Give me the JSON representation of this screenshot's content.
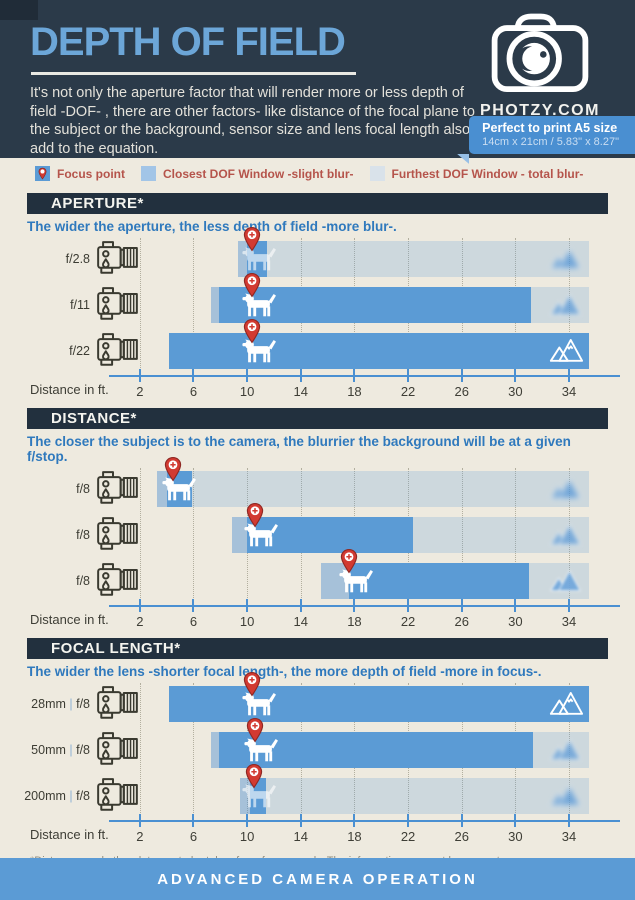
{
  "header": {
    "title": "DEPTH OF FIELD",
    "description": "It's not only the aperture factor that will render more or less depth of field -DOF- , there are other factors- like distance of the focal plane to the subject or the background, sensor size and lens focal length also add to the equation.",
    "brand": "PHOTZY.COM",
    "badge_line1": "Perfect to print A5 size",
    "badge_line2": "14cm x 21cm / 5.83\" x 8.27\""
  },
  "legend": {
    "items": [
      {
        "swatch": "focus-point",
        "label": "Focus point"
      },
      {
        "swatch": "closest-dof",
        "label": "Closest DOF  Window -slight blur-"
      },
      {
        "swatch": "furthest-dof",
        "label": "Furthest DOF Window - total blur-"
      }
    ]
  },
  "footnote": "*Distances and other data are to be taken for reference only. The information may not be accurate.",
  "footer": {
    "label": "ADVANCED CAMERA OPERATION"
  },
  "colors": {
    "header_bg": "#2b3a49",
    "page_bg": "#eeeadf",
    "accent_blue": "#5b9bd5",
    "badge_blue": "#4a8fd1",
    "section_bar": "#22303e",
    "subtitle_blue": "#2f79bd",
    "legend_text": "#b5544b",
    "pin_red": "#d23a31",
    "closest_window_blue": "#a2c5e7",
    "furthest_window_blue": "#d9e2ea"
  },
  "chart_data": {
    "type": "bar",
    "unit": "ft",
    "axis_title": "Distance in ft.",
    "x_ticks": [
      2,
      6,
      10,
      14,
      18,
      22,
      26,
      30,
      34
    ],
    "x_domain": [
      0,
      37.8
    ],
    "charts": [
      {
        "title": "APERTURE*",
        "subtitle": "The wider the aperture, the less depth of field -more blur-.",
        "rows": [
          {
            "label": "f/2.8",
            "closest_blur": [
              9.3,
              10.0
            ],
            "in_focus": [
              10.0,
              11.5
            ],
            "far_blur": [
              11.5,
              35.5
            ],
            "focus_point": 10.4,
            "subject": 10.9,
            "mountain": 33.8,
            "background": "blur-heavy",
            "subject_faded": true
          },
          {
            "label": "f/11",
            "closest_blur": [
              7.3,
              7.9
            ],
            "in_focus": [
              7.9,
              31.2
            ],
            "far_blur": [
              31.2,
              35.5
            ],
            "focus_point": 10.4,
            "subject": 10.9,
            "mountain": 33.8,
            "background": "blur-medium",
            "subject_faded": false
          },
          {
            "label": "f/22",
            "closest_blur": null,
            "in_focus": [
              4.2,
              35.5
            ],
            "far_blur": null,
            "focus_point": 10.4,
            "subject": 10.9,
            "mountain": 33.8,
            "background": "sharp",
            "subject_faded": false
          }
        ]
      },
      {
        "title": "DISTANCE*",
        "subtitle": "The closer the subject is to the camera, the blurrier the background will be at a given f/stop.",
        "rows": [
          {
            "label": "f/8",
            "closest_blur": [
              3.3,
              4.0
            ],
            "in_focus": [
              4.0,
              5.9
            ],
            "far_blur": [
              5.9,
              35.5
            ],
            "focus_point": 4.5,
            "subject": 4.9,
            "mountain": 33.8,
            "background": "blur-heavy",
            "subject_faded": false
          },
          {
            "label": "f/8",
            "closest_blur": [
              8.9,
              10.0
            ],
            "in_focus": [
              10.0,
              22.4
            ],
            "far_blur": [
              22.4,
              35.5
            ],
            "focus_point": 10.6,
            "subject": 11.0,
            "mountain": 33.8,
            "background": "blur-medium",
            "subject_faded": false
          },
          {
            "label": "f/8",
            "closest_blur": [
              15.5,
              17.6
            ],
            "in_focus": [
              17.6,
              31.0
            ],
            "far_blur": [
              31.0,
              35.5
            ],
            "focus_point": 17.6,
            "subject": 18.1,
            "mountain": 33.8,
            "background": "blur-light",
            "subject_faded": false
          }
        ]
      },
      {
        "title": "FOCAL LENGTH*",
        "subtitle": "The wider the lens -shorter focal length-, the more depth of field -more in focus-.",
        "rows": [
          {
            "label": "28mm | f/8",
            "closest_blur": null,
            "in_focus": [
              4.2,
              35.5
            ],
            "far_blur": null,
            "focus_point": 10.4,
            "subject": 10.9,
            "mountain": 33.8,
            "background": "sharp",
            "subject_faded": false
          },
          {
            "label": "50mm | f/8",
            "closest_blur": [
              7.3,
              7.9
            ],
            "in_focus": [
              7.9,
              31.3
            ],
            "far_blur": [
              31.3,
              35.5
            ],
            "focus_point": 10.6,
            "subject": 11.0,
            "mountain": 33.8,
            "background": "blur-medium",
            "subject_faded": false
          },
          {
            "label": "200mm | f/8",
            "closest_blur": [
              9.5,
              10.2
            ],
            "in_focus": [
              10.2,
              11.4
            ],
            "far_blur": [
              11.4,
              35.5
            ],
            "focus_point": 10.5,
            "subject": 10.9,
            "mountain": 33.8,
            "background": "blur-heavy",
            "subject_faded": true
          }
        ]
      }
    ]
  }
}
